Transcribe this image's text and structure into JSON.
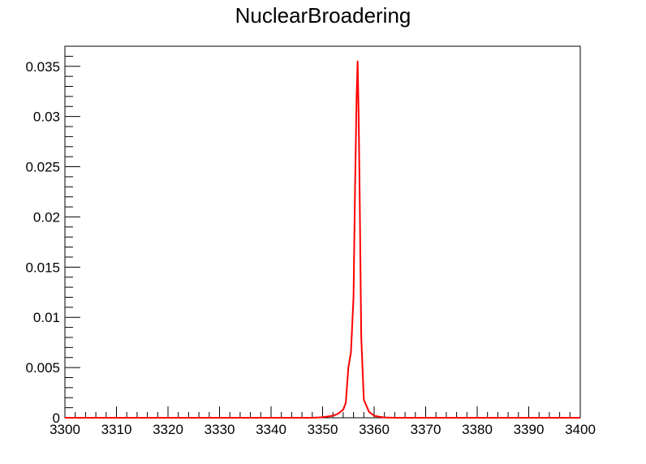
{
  "chart_data": {
    "type": "line",
    "title": "NuclearBroadering",
    "xlabel": "",
    "ylabel": "",
    "xlim": [
      3300,
      3400
    ],
    "ylim": [
      0,
      0.037
    ],
    "grid": false,
    "x_ticks": [
      3300,
      3310,
      3320,
      3330,
      3340,
      3350,
      3360,
      3370,
      3380,
      3390,
      3400
    ],
    "x_tick_labels": [
      "3300",
      "3310",
      "3320",
      "3330",
      "3340",
      "3350",
      "3360",
      "3370",
      "3380",
      "3390",
      "3400"
    ],
    "y_ticks": [
      0,
      0.005,
      0.01,
      0.015,
      0.02,
      0.025,
      0.03,
      0.035
    ],
    "y_tick_labels": [
      "0",
      "0.005",
      "0.01",
      "0.015",
      "0.02",
      "0.025",
      "0.03",
      "0.035"
    ],
    "line_color": "#ff0000",
    "series": [
      {
        "x": [
          3300,
          3348,
          3350,
          3352,
          3353,
          3354,
          3354.5,
          3355,
          3355.5,
          3356,
          3356.3,
          3356.6,
          3356.8,
          3357,
          3357.2,
          3357.5,
          3358,
          3358.5,
          3359,
          3360,
          3361,
          3362,
          3364,
          3400
        ],
        "y": [
          0,
          0,
          5e-05,
          0.0002,
          0.0004,
          0.0008,
          0.0015,
          0.005,
          0.0065,
          0.012,
          0.023,
          0.032,
          0.0355,
          0.03,
          0.022,
          0.008,
          0.0018,
          0.0012,
          0.0006,
          0.0002,
          0.0001,
          3e-05,
          0,
          0
        ]
      }
    ]
  }
}
